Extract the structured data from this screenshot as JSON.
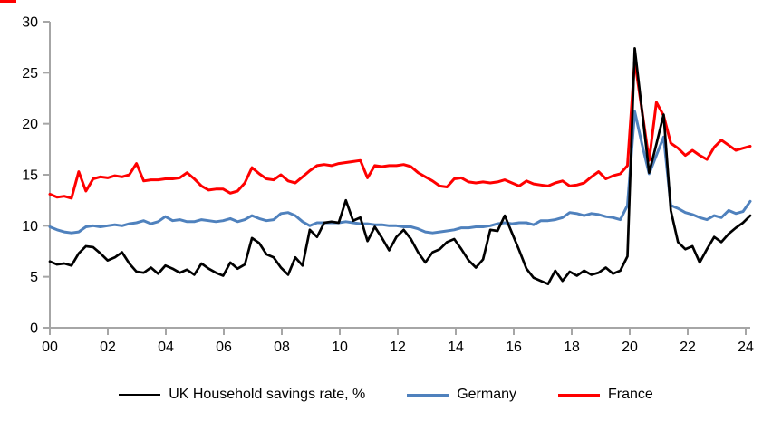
{
  "accent_colors": {
    "uk": "#000000",
    "germany": "#4F81BD",
    "france": "#FF0000",
    "axis": "#A6A6A6",
    "background": "#FFFFFF",
    "corner_artifact": "#FF0000"
  },
  "legend": {
    "items": [
      {
        "id": "uk-household-savings-rate",
        "label": "UK Household savings rate, %",
        "color": "#000000"
      },
      {
        "id": "germany",
        "label": "Germany",
        "color": "#4F81BD"
      },
      {
        "id": "france",
        "label": "France",
        "color": "#FF0000"
      }
    ]
  },
  "chart_data": {
    "type": "line",
    "title": "",
    "xlabel": "",
    "ylabel": "",
    "grid": false,
    "legend_position": "bottom",
    "ylim": [
      0,
      30
    ],
    "y_ticks": [
      "0",
      "5",
      "10",
      "15",
      "20",
      "25",
      "30"
    ],
    "x_ticks": [
      "00",
      "02",
      "04",
      "06",
      "08",
      "10",
      "12",
      "14",
      "16",
      "18",
      "20",
      "22",
      "24"
    ],
    "frequency": "quarterly",
    "x_start": "2000Q1",
    "x_end": "2024Q2",
    "series": [
      {
        "id": "uk-household-savings-rate",
        "name": "UK Household savings rate, %",
        "color": "#000000",
        "stroke_width": 2.7,
        "values": [
          6.5,
          6.2,
          6.3,
          6.1,
          7.3,
          8.0,
          7.9,
          7.3,
          6.6,
          6.9,
          7.4,
          6.3,
          5.5,
          5.4,
          5.9,
          5.3,
          6.1,
          5.8,
          5.4,
          5.7,
          5.2,
          6.3,
          5.8,
          5.4,
          5.1,
          6.4,
          5.8,
          6.2,
          8.8,
          8.3,
          7.2,
          6.9,
          5.9,
          5.2,
          6.9,
          6.1,
          9.6,
          8.9,
          10.3,
          10.4,
          10.3,
          12.5,
          10.5,
          10.8,
          8.5,
          9.9,
          8.8,
          7.6,
          8.9,
          9.6,
          8.7,
          7.4,
          6.4,
          7.4,
          7.7,
          8.4,
          8.7,
          7.7,
          6.6,
          5.9,
          6.7,
          9.6,
          9.5,
          11.0,
          9.3,
          7.6,
          5.8,
          4.9,
          4.6,
          4.3,
          5.6,
          4.6,
          5.5,
          5.1,
          5.6,
          5.2,
          5.4,
          5.9,
          5.3,
          5.6,
          7.0,
          27.4,
          21.3,
          15.2,
          18.0,
          20.9,
          11.5,
          8.4,
          7.7,
          8.0,
          6.4,
          7.7,
          8.9,
          8.4,
          9.2,
          9.8,
          10.3,
          11.0
        ]
      },
      {
        "id": "germany",
        "name": "Germany",
        "color": "#4F81BD",
        "stroke_width": 3,
        "values": [
          9.9,
          9.6,
          9.4,
          9.3,
          9.4,
          9.9,
          10.0,
          9.9,
          10.0,
          10.1,
          10.0,
          10.2,
          10.3,
          10.5,
          10.2,
          10.4,
          10.9,
          10.5,
          10.6,
          10.4,
          10.4,
          10.6,
          10.5,
          10.4,
          10.5,
          10.7,
          10.4,
          10.6,
          11.0,
          10.7,
          10.5,
          10.6,
          11.2,
          11.3,
          11.0,
          10.4,
          10.0,
          10.3,
          10.3,
          10.3,
          10.3,
          10.4,
          10.3,
          10.2,
          10.2,
          10.1,
          10.1,
          10.0,
          10.0,
          9.9,
          9.9,
          9.7,
          9.4,
          9.3,
          9.4,
          9.5,
          9.6,
          9.8,
          9.8,
          9.9,
          9.9,
          10.0,
          10.2,
          10.3,
          10.2,
          10.3,
          10.3,
          10.1,
          10.5,
          10.5,
          10.6,
          10.8,
          11.3,
          11.2,
          11.0,
          11.2,
          11.1,
          10.9,
          10.8,
          10.6,
          12.0,
          21.2,
          18.0,
          15.1,
          16.9,
          18.7,
          12.0,
          11.7,
          11.3,
          11.1,
          10.8,
          10.6,
          11.0,
          10.8,
          11.5,
          11.2,
          11.4,
          12.4
        ]
      },
      {
        "id": "france",
        "name": "France",
        "color": "#FF0000",
        "stroke_width": 3,
        "values": [
          13.1,
          12.8,
          12.9,
          12.7,
          15.3,
          13.4,
          14.6,
          14.8,
          14.7,
          14.9,
          14.8,
          15.0,
          16.1,
          14.4,
          14.5,
          14.5,
          14.6,
          14.6,
          14.7,
          15.2,
          14.6,
          13.9,
          13.5,
          13.6,
          13.6,
          13.2,
          13.4,
          14.2,
          15.7,
          15.1,
          14.6,
          14.5,
          15.0,
          14.4,
          14.2,
          14.8,
          15.4,
          15.9,
          16.0,
          15.9,
          16.1,
          16.2,
          16.3,
          16.4,
          14.7,
          15.9,
          15.8,
          15.9,
          15.9,
          16.0,
          15.8,
          15.2,
          14.8,
          14.4,
          13.9,
          13.8,
          14.6,
          14.7,
          14.3,
          14.2,
          14.3,
          14.2,
          14.3,
          14.5,
          14.2,
          13.9,
          14.4,
          14.1,
          14.0,
          13.9,
          14.2,
          14.4,
          13.9,
          14.0,
          14.2,
          14.8,
          15.3,
          14.6,
          14.9,
          15.1,
          15.9,
          26.2,
          21.3,
          16.4,
          22.1,
          20.8,
          18.1,
          17.6,
          16.9,
          17.4,
          16.9,
          16.5,
          17.7,
          18.4,
          17.9,
          17.4,
          17.6,
          17.8
        ]
      }
    ]
  }
}
